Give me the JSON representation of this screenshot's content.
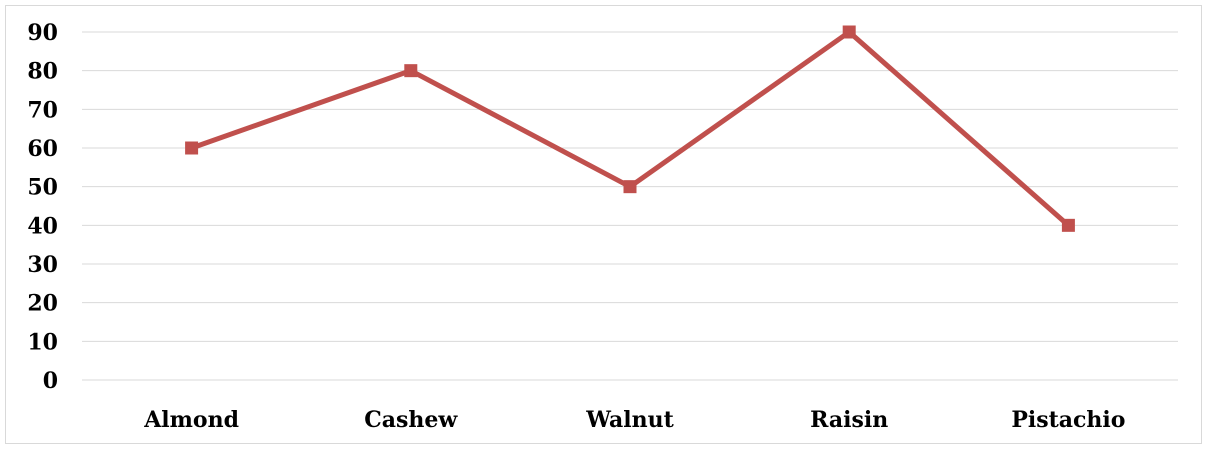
{
  "chart_data": {
    "type": "line",
    "categories": [
      "Almond",
      "Cashew",
      "Walnut",
      "Raisin",
      "Pistachio"
    ],
    "series": [
      {
        "values": [
          60,
          80,
          50,
          90,
          40
        ]
      }
    ],
    "title": "",
    "xlabel": "",
    "ylabel": "",
    "ylim": [
      0,
      90
    ],
    "yticks": [
      "0",
      "10",
      "20",
      "30",
      "40",
      "50",
      "60",
      "70",
      "80",
      "90"
    ],
    "grid": true,
    "legend": "none",
    "colors": {
      "line": "#c0504d",
      "grid": "#d9d9d9",
      "text": "#000000"
    },
    "marker": "square"
  }
}
